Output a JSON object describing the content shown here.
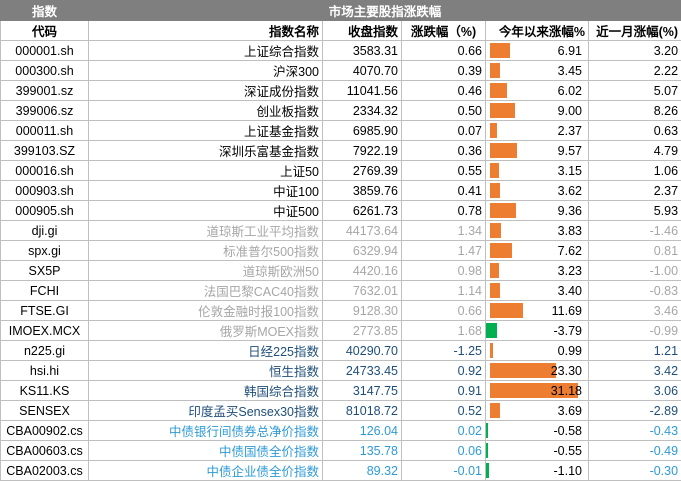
{
  "title": "市场主要股指涨跌幅",
  "top_left": "指数",
  "headers": [
    "代码",
    "指数名称",
    "收盘指数",
    "涨跌幅（%)",
    "今年以来涨幅%",
    "近一月涨幅(%)"
  ],
  "colors": {
    "positive_bar": "#ed7d31",
    "negative_bar": "#00b050",
    "header_bg": "#7f7f7f"
  },
  "rows": [
    {
      "code": "000001.sh",
      "name": "上证综合指数",
      "close": "3583.31",
      "chg": "0.66",
      "ytd": "6.91",
      "ytd_value": 6.91,
      "m1": "3.20",
      "style": "black"
    },
    {
      "code": "000300.sh",
      "name": "沪深300",
      "close": "4070.70",
      "chg": "0.39",
      "ytd": "3.45",
      "ytd_value": 3.45,
      "m1": "2.22",
      "style": "black"
    },
    {
      "code": "399001.sz",
      "name": "深证成份指数",
      "close": "11041.56",
      "chg": "0.46",
      "ytd": "6.02",
      "ytd_value": 6.02,
      "m1": "5.07",
      "style": "black"
    },
    {
      "code": "399006.sz",
      "name": "创业板指数",
      "close": "2334.32",
      "chg": "0.50",
      "ytd": "9.00",
      "ytd_value": 9.0,
      "m1": "8.26",
      "style": "black"
    },
    {
      "code": "000011.sh",
      "name": "上证基金指数",
      "close": "6985.90",
      "chg": "0.07",
      "ytd": "2.37",
      "ytd_value": 2.37,
      "m1": "0.63",
      "style": "black"
    },
    {
      "code": "399103.SZ",
      "name": "深圳乐富基金指数",
      "close": "7922.19",
      "chg": "0.36",
      "ytd": "9.57",
      "ytd_value": 9.57,
      "m1": "4.79",
      "style": "black"
    },
    {
      "code": "000016.sh",
      "name": "上证50",
      "close": "2769.39",
      "chg": "0.55",
      "ytd": "3.15",
      "ytd_value": 3.15,
      "m1": "1.06",
      "style": "black"
    },
    {
      "code": "000903.sh",
      "name": "中证100",
      "close": "3859.76",
      "chg": "0.41",
      "ytd": "3.62",
      "ytd_value": 3.62,
      "m1": "2.37",
      "style": "black"
    },
    {
      "code": "000905.sh",
      "name": "中证500",
      "close": "6261.73",
      "chg": "0.78",
      "ytd": "9.36",
      "ytd_value": 9.36,
      "m1": "5.93",
      "style": "black"
    },
    {
      "code": "dji.gi",
      "name": "道琼斯工业平均指数",
      "close": "44173.64",
      "chg": "1.34",
      "ytd": "3.83",
      "ytd_value": 3.83,
      "m1": "-1.46",
      "style": "grey"
    },
    {
      "code": "spx.gi",
      "name": "标准普尔500指数",
      "close": "6329.94",
      "chg": "1.47",
      "ytd": "7.62",
      "ytd_value": 7.62,
      "m1": "0.81",
      "style": "grey"
    },
    {
      "code": "SX5P",
      "name": "道琼斯欧洲50",
      "close": "4420.16",
      "chg": "0.98",
      "ytd": "3.23",
      "ytd_value": 3.23,
      "m1": "-1.00",
      "style": "grey"
    },
    {
      "code": "FCHI",
      "name": "法国巴黎CAC40指数",
      "close": "7632.01",
      "chg": "1.14",
      "ytd": "3.40",
      "ytd_value": 3.4,
      "m1": "-0.83",
      "style": "grey"
    },
    {
      "code": "FTSE.GI",
      "name": "伦敦金融时报100指数",
      "close": "9128.30",
      "chg": "0.66",
      "ytd": "11.69",
      "ytd_value": 11.69,
      "m1": "3.46",
      "style": "grey"
    },
    {
      "code": "IMOEX.MCX",
      "name": "俄罗斯MOEX指数",
      "close": "2773.85",
      "chg": "1.68",
      "ytd": "-3.79",
      "ytd_value": -3.79,
      "m1": "-0.99",
      "style": "grey"
    },
    {
      "code": "n225.gi",
      "name": "日经225指数",
      "close": "40290.70",
      "chg": "-1.25",
      "ytd": "0.99",
      "ytd_value": 0.99,
      "m1": "1.21",
      "style": "blue"
    },
    {
      "code": "hsi.hi",
      "name": "恒生指数",
      "close": "24733.45",
      "chg": "0.92",
      "ytd": "23.30",
      "ytd_value": 23.3,
      "m1": "3.42",
      "style": "blue"
    },
    {
      "code": "KS11.KS",
      "name": "韩国综合指数",
      "close": "3147.75",
      "chg": "0.91",
      "ytd": "31.18",
      "ytd_value": 31.18,
      "m1": "3.06",
      "style": "blue"
    },
    {
      "code": "SENSEX",
      "name": "印度孟买Sensex30指数",
      "close": "81018.72",
      "chg": "0.52",
      "ytd": "3.69",
      "ytd_value": 3.69,
      "m1": "-2.89",
      "style": "blue"
    },
    {
      "code": "CBA00902.cs",
      "name": "中债银行间债券总净价指数",
      "close": "126.04",
      "chg": "0.02",
      "ytd": "-0.58",
      "ytd_value": -0.58,
      "m1": "-0.43",
      "style": "lblue"
    },
    {
      "code": "CBA00603.cs",
      "name": "中债国债全价指数",
      "close": "135.78",
      "chg": "0.06",
      "ytd": "-0.55",
      "ytd_value": -0.55,
      "m1": "-0.49",
      "style": "lblue"
    },
    {
      "code": "CBA02003.cs",
      "name": "中债企业债全价指数",
      "close": "89.32",
      "chg": "-0.01",
      "ytd": "-1.10",
      "ytd_value": -1.1,
      "m1": "-0.30",
      "style": "lblue"
    }
  ]
}
